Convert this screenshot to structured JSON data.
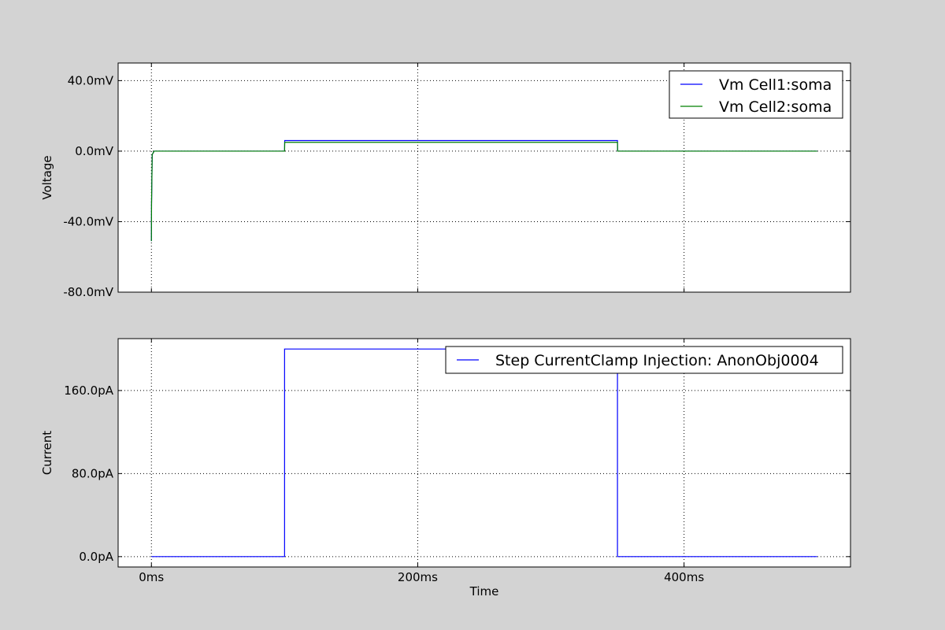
{
  "chart_data": [
    {
      "type": "line",
      "title": "",
      "xlabel": "",
      "ylabel": "Voltage",
      "xlim": [
        -12.5,
        262.5
      ],
      "ylim": [
        -80,
        50
      ],
      "grid": true,
      "legend_position": "top-right",
      "x_ticks": [
        0,
        100,
        200
      ],
      "x_tick_labels": [
        "",
        "",
        ""
      ],
      "y_ticks": [
        -80,
        -40,
        0,
        40
      ],
      "y_tick_labels": [
        "-80.0mV",
        "-40.0mV",
        "0.0mV",
        "40.0mV"
      ],
      "series": [
        {
          "name": "Vm Cell1:soma",
          "color": "#0000ff",
          "x": [
            0,
            0.05,
            0.3,
            1,
            50,
            50.05,
            175,
            175.05,
            250
          ],
          "y": [
            -51,
            -30,
            -2,
            0,
            0,
            6,
            6,
            0,
            0
          ]
        },
        {
          "name": "Vm Cell2:soma",
          "color": "#008000",
          "x": [
            0,
            0.05,
            0.3,
            1,
            50,
            50.05,
            175,
            175.05,
            250
          ],
          "y": [
            -51,
            -30,
            -2,
            0,
            0,
            5,
            5,
            0,
            0
          ]
        }
      ]
    },
    {
      "type": "line",
      "title": "",
      "xlabel": "Time",
      "ylabel": "Current",
      "xlim": [
        -12.5,
        262.5
      ],
      "ylim": [
        -10,
        210
      ],
      "grid": true,
      "legend_position": "top-right",
      "x_ticks": [
        0,
        100,
        200
      ],
      "x_tick_labels": [
        "0ms",
        "200ms",
        "400ms"
      ],
      "y_ticks": [
        0,
        80,
        160
      ],
      "y_tick_labels": [
        "0.0pA",
        "80.0pA",
        "160.0pA"
      ],
      "series": [
        {
          "name": "Step CurrentClamp Injection: AnonObj0004",
          "color": "#0000ff",
          "x": [
            0,
            50,
            50,
            175,
            175,
            250
          ],
          "y": [
            0,
            0,
            200,
            200,
            0,
            0
          ]
        }
      ]
    }
  ]
}
